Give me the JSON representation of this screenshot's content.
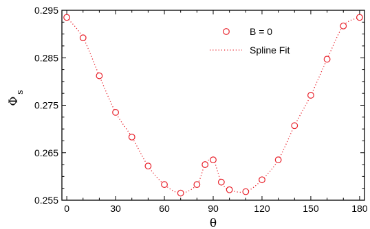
{
  "chart_data": {
    "type": "scatter",
    "xlabel": "θ",
    "ylabel_main": "Φ",
    "ylabel_sub": "s",
    "xlim": [
      -3,
      183
    ],
    "ylim": [
      0.255,
      0.295
    ],
    "x_ticks": [
      0,
      30,
      60,
      90,
      120,
      150,
      180
    ],
    "x_tick_labels": [
      "0",
      "30",
      "60",
      "90",
      "120",
      "150",
      "180"
    ],
    "y_ticks": [
      0.255,
      0.265,
      0.275,
      0.285,
      0.295
    ],
    "y_tick_labels": [
      "0.255",
      "0.265",
      "0.275",
      "0.285",
      "0.295"
    ],
    "legend_position": "top-right",
    "series": [
      {
        "name": "B = 0",
        "style": "markers",
        "marker": "circle-open",
        "color": "#e8202a",
        "x": [
          0,
          10,
          20,
          30,
          40,
          50,
          60,
          70,
          80,
          85,
          90,
          95,
          100,
          110,
          120,
          130,
          140,
          150,
          160,
          170,
          180
        ],
        "y": [
          0.2935,
          0.2892,
          0.2812,
          0.2735,
          0.2683,
          0.2622,
          0.2583,
          0.2565,
          0.2583,
          0.2625,
          0.2635,
          0.2588,
          0.2572,
          0.2568,
          0.2593,
          0.2635,
          0.2707,
          0.2771,
          0.2847,
          0.2917,
          0.2935
        ]
      },
      {
        "name": "Spline Fit",
        "style": "dotted-line",
        "color": "#e8202a"
      }
    ]
  }
}
